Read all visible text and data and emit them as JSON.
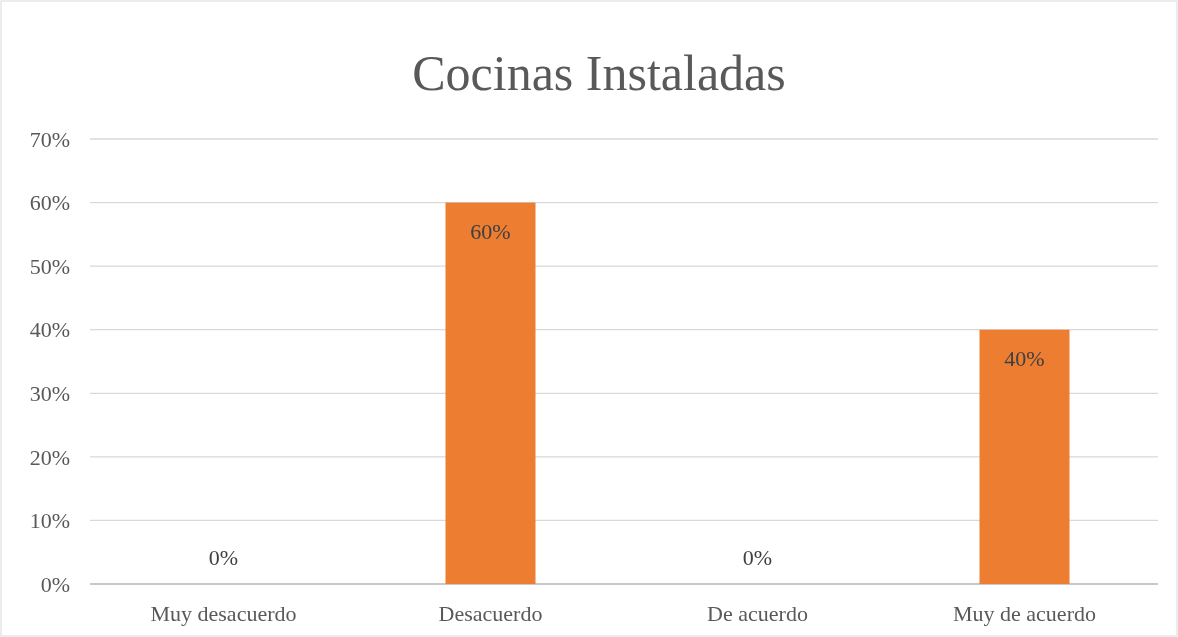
{
  "chart_data": {
    "type": "bar",
    "title": "Cocinas Instaladas",
    "categories": [
      "Muy desacuerdo",
      "Desacuerdo",
      "De acuerdo",
      "Muy de acuerdo"
    ],
    "values": [
      0,
      60,
      0,
      40
    ],
    "color": "#ed7d31",
    "value_labels": [
      "0%",
      "60%",
      "0%",
      "40%"
    ],
    "ylim": [
      0,
      70
    ],
    "yticks": [
      {
        "value": 0,
        "label": "0%"
      },
      {
        "value": 10,
        "label": "10%"
      },
      {
        "value": 20,
        "label": "20%"
      },
      {
        "value": 30,
        "label": "30%"
      },
      {
        "value": 40,
        "label": "40%"
      },
      {
        "value": 50,
        "label": "50%"
      },
      {
        "value": 60,
        "label": "60%"
      },
      {
        "value": 70,
        "label": "70%"
      }
    ],
    "grid": true
  }
}
